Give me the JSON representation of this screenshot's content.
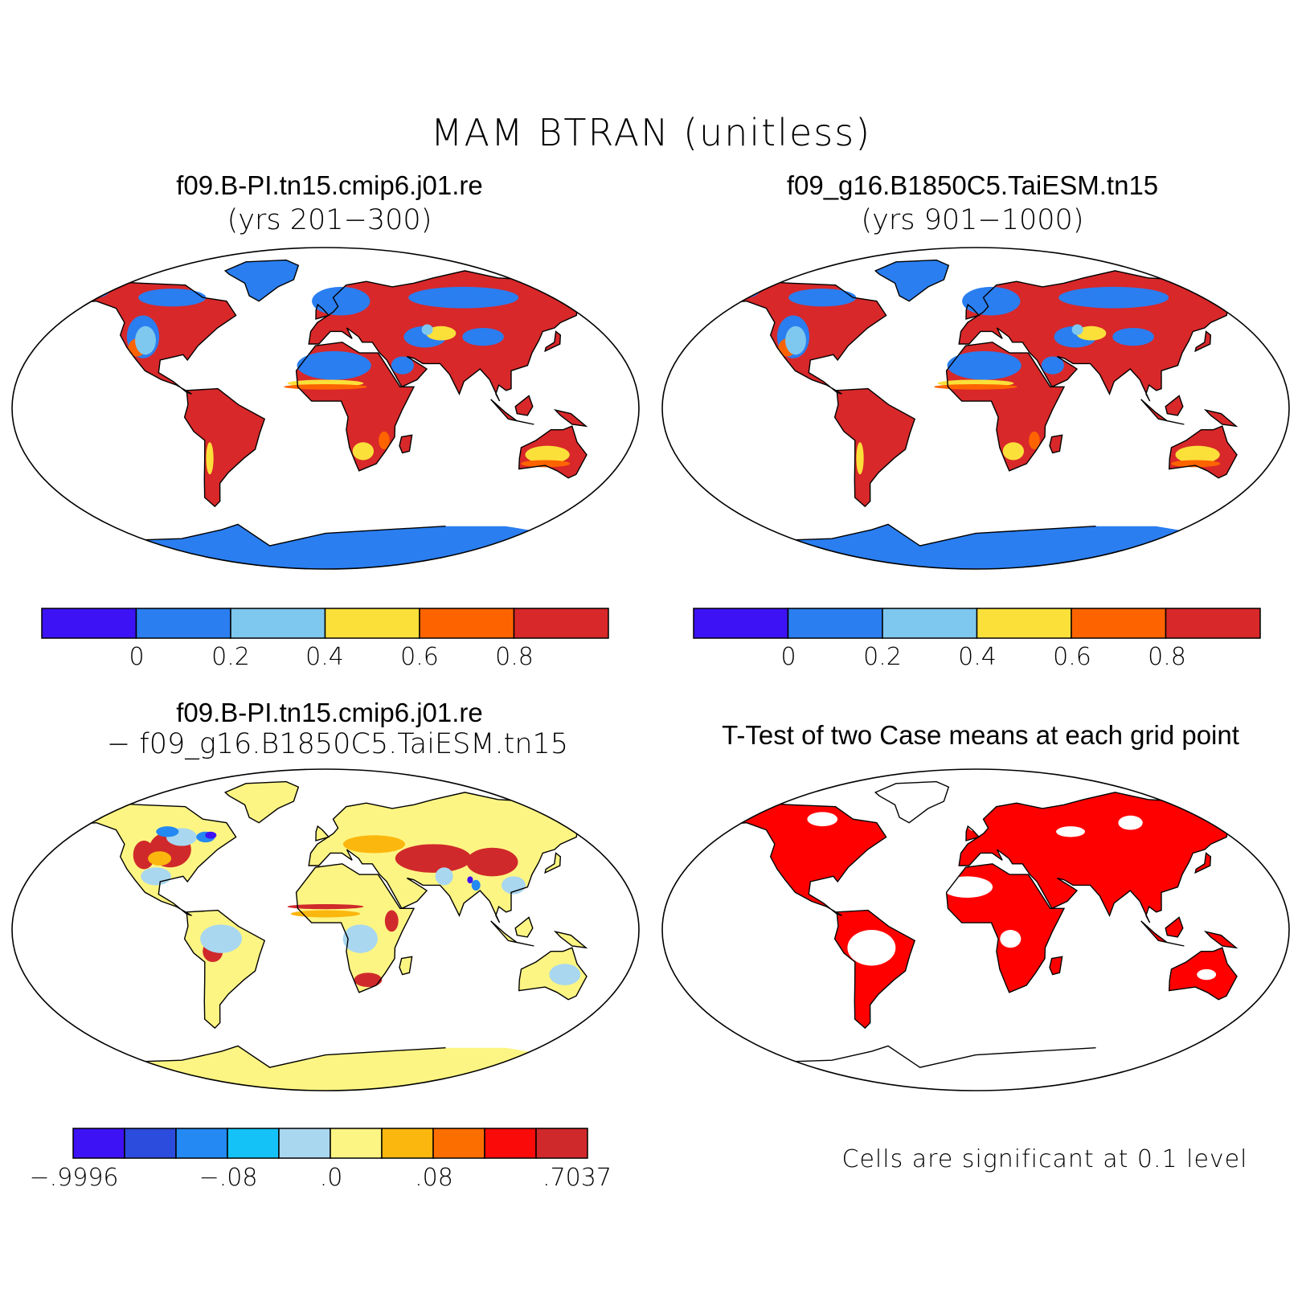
{
  "title": "MAM BTRAN (unitless)",
  "panels": [
    {
      "title": "f09.B-PI.tn15.cmip6.j01.re",
      "subtitle": "(yrs 201−300)"
    },
    {
      "title": "f09_g16.B1850C5.TaiESM.tn15",
      "subtitle": "(yrs 901−1000)"
    },
    {
      "title": "f09.B-PI.tn15.cmip6.j01.re",
      "subtitle": "− f09_g16.B1850C5.TaiESM.tn15"
    },
    {
      "title": "T-Test of two Case means at each grid point",
      "subtitle": ""
    }
  ],
  "colorbar_abs": {
    "colors": [
      "#3d12f5",
      "#2a7ef0",
      "#7ec7ee",
      "#fbe03a",
      "#fd6400",
      "#d8282a"
    ],
    "ticks": [
      "0",
      "0.2",
      "0.4",
      "0.6",
      "0.8"
    ]
  },
  "colorbar_diff": {
    "colors": [
      "#3d12f5",
      "#2c4cdd",
      "#2489f2",
      "#14c2f7",
      "#a9d7f0",
      "#fdf583",
      "#fcb70e",
      "#fd6e00",
      "#fb0a0a",
      "#d0292b"
    ],
    "ticks": [
      "−.9996",
      "−.08",
      ".0",
      ".08",
      ".7037"
    ]
  },
  "significance_note": "Cells are significant at 0.1 level",
  "colors": {
    "map_outline": "#000000",
    "significant": "#ff0000"
  }
}
